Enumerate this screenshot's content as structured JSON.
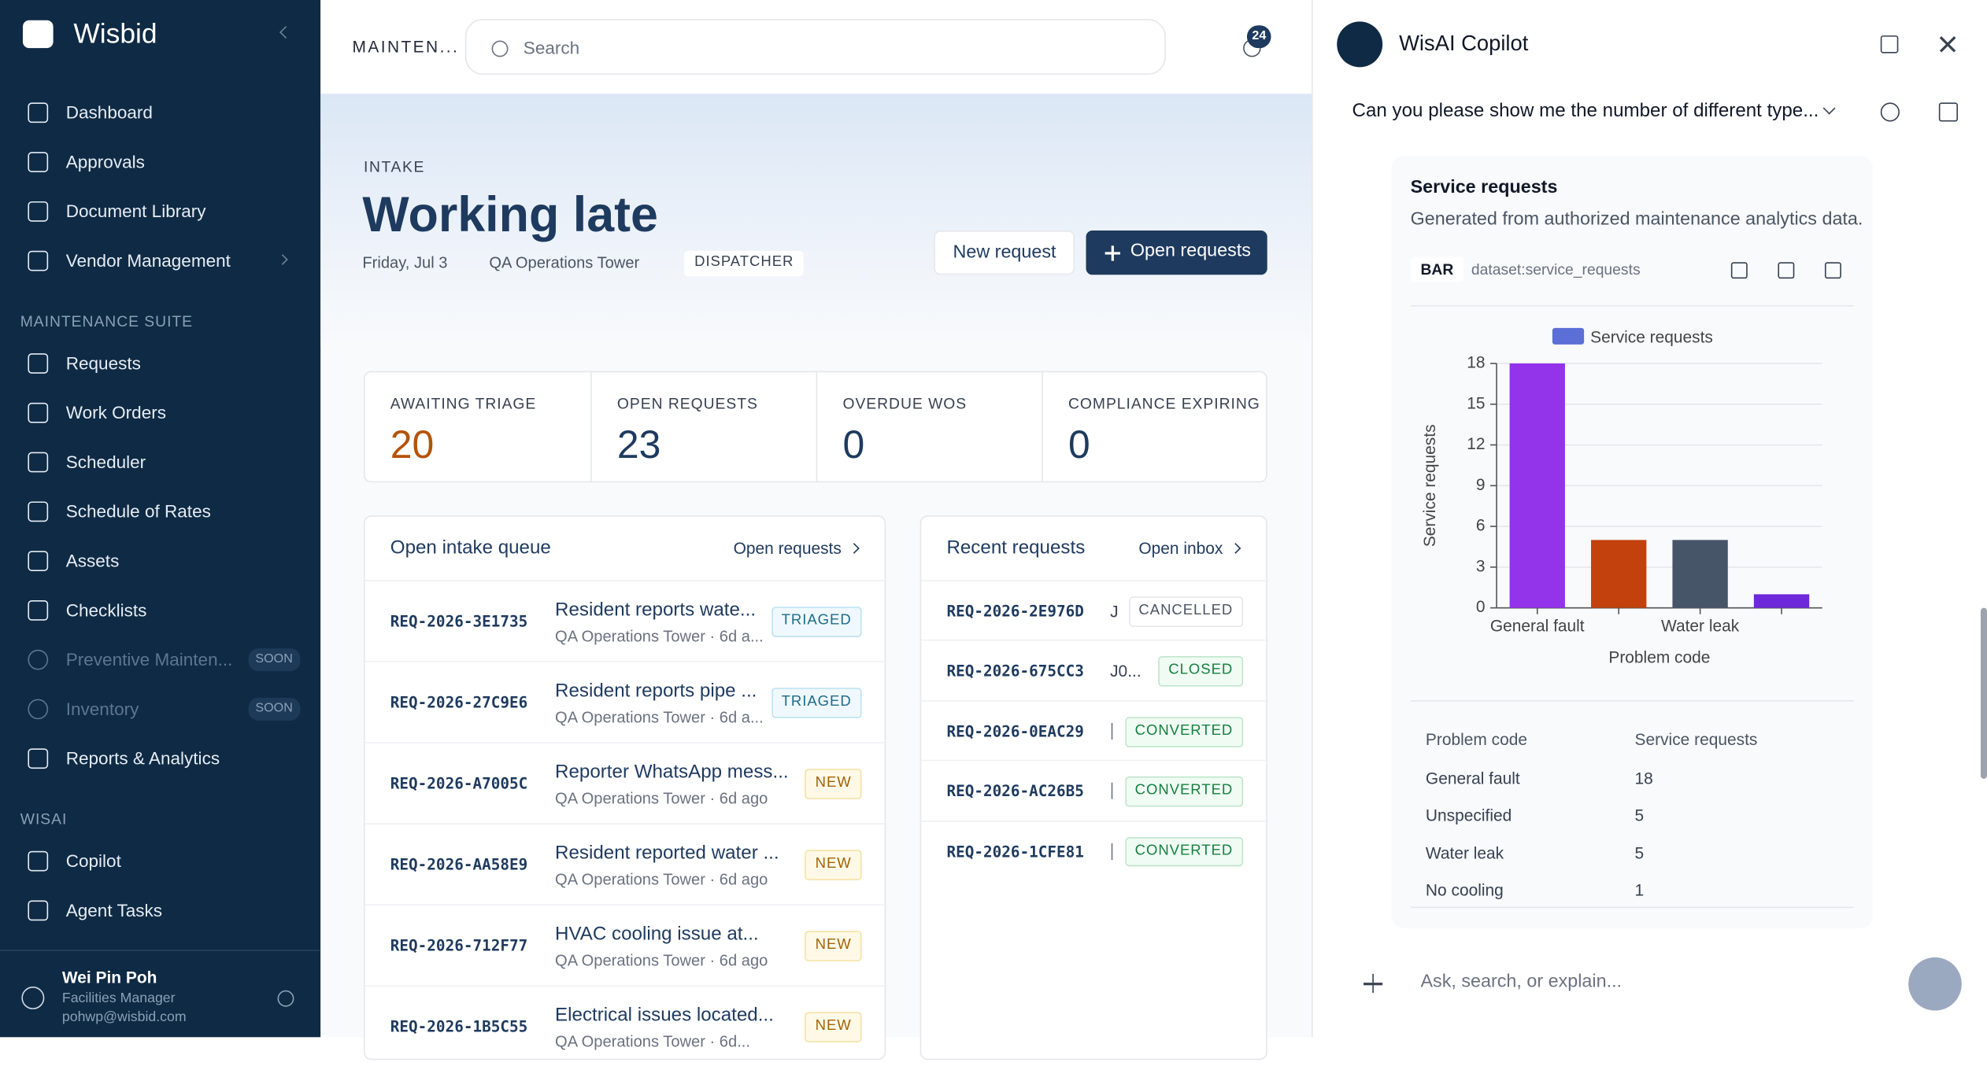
{
  "sidebar": {
    "brand": "Wisbid",
    "groups": [
      {
        "items": [
          {
            "label": "Dashboard"
          },
          {
            "label": "Approvals"
          },
          {
            "label": "Document Library"
          },
          {
            "label": "Vendor Management",
            "expandable": true
          }
        ]
      },
      {
        "heading": "MAINTENANCE SUITE",
        "items": [
          {
            "label": "Requests"
          },
          {
            "label": "Work Orders"
          },
          {
            "label": "Scheduler"
          },
          {
            "label": "Schedule of Rates"
          },
          {
            "label": "Assets"
          },
          {
            "label": "Checklists"
          },
          {
            "label": "Preventive Mainten...",
            "badge": "SOON",
            "disabled": true
          },
          {
            "label": "Inventory",
            "badge": "SOON",
            "disabled": true
          },
          {
            "label": "Reports & Analytics"
          }
        ]
      },
      {
        "heading": "WISAI",
        "items": [
          {
            "label": "Copilot"
          },
          {
            "label": "Agent Tasks"
          }
        ]
      }
    ],
    "user": {
      "name": "Wei Pin Poh",
      "role": "Facilities Manager",
      "email": "pohwp@wisbid.com"
    }
  },
  "topbar": {
    "breadcrumb": "MAINTEN...",
    "search": "Search",
    "notifications": 24
  },
  "hero": {
    "eyebrow": "INTAKE",
    "title": "Working late",
    "date": "Friday, Jul 3",
    "location": "QA Operations Tower",
    "role": "DISPATCHER",
    "actions": [
      "New request",
      "Open requests"
    ]
  },
  "stats": [
    {
      "label": "AWAITING TRIAGE",
      "value": 20,
      "color": "#b45309"
    },
    {
      "label": "OPEN REQUESTS",
      "value": 23,
      "color": "#1e3a5f"
    },
    {
      "label": "OVERDUE WOS",
      "value": 0,
      "color": "#1e3a5f"
    },
    {
      "label": "COMPLIANCE EXPIRING",
      "value": 0,
      "color": "#1e3a5f"
    }
  ],
  "queue": {
    "title": "Open intake queue",
    "link": "Open requests",
    "rows": [
      {
        "id": "REQ-2026-3E1735",
        "title": "Resident reports wate...",
        "sub": "QA Operations Tower · 6d a...",
        "status": "TRIAGED",
        "tone": "blue"
      },
      {
        "id": "REQ-2026-27C9E6",
        "title": "Resident reports pipe ...",
        "sub": "QA Operations Tower · 6d a...",
        "status": "TRIAGED",
        "tone": "blue"
      },
      {
        "id": "REQ-2026-A7005C",
        "title": "Reporter WhatsApp mess...",
        "sub": "QA Operations Tower · 6d ago",
        "status": "NEW",
        "tone": "yellow"
      },
      {
        "id": "REQ-2026-AA58E9",
        "title": "Resident reported water ...",
        "sub": "QA Operations Tower · 6d ago",
        "status": "NEW",
        "tone": "yellow"
      },
      {
        "id": "REQ-2026-712F77",
        "title": "HVAC cooling issue at...",
        "sub": "QA Operations Tower · 6d ago",
        "status": "NEW",
        "tone": "yellow"
      },
      {
        "id": "REQ-2026-1B5C55",
        "title": "Electrical issues located...",
        "sub": "QA Operations Tower · 6d...",
        "status": "NEW",
        "tone": "yellow"
      }
    ]
  },
  "recent": {
    "title": "Recent requests",
    "link": "Open inbox",
    "rows": [
      {
        "id": "REQ-2026-2E976D",
        "who": "J",
        "status": "CANCELLED",
        "tone": "gray"
      },
      {
        "id": "REQ-2026-675CC3",
        "who": "J0...",
        "status": "CLOSED",
        "tone": "green"
      },
      {
        "id": "REQ-2026-0EAC29",
        "status": "CONVERTED",
        "tone": "green"
      },
      {
        "id": "REQ-2026-AC26B5",
        "status": "CONVERTED",
        "tone": "green"
      },
      {
        "id": "REQ-2026-1CFE81",
        "status": "CONVERTED",
        "tone": "green"
      }
    ]
  },
  "copilot": {
    "title": "WisAI Copilot",
    "question": "Can you please show me the number of different type...",
    "card": {
      "title": "Service requests",
      "subtitle": "Generated from authorized maintenance analytics data.",
      "tag": "BAR",
      "dataset": "dataset:service_requests"
    },
    "table": {
      "headers": [
        "Problem code",
        "Service requests"
      ],
      "rows": [
        [
          "General fault",
          18
        ],
        [
          "Unspecified",
          5
        ],
        [
          "Water leak",
          5
        ],
        [
          "No cooling",
          1
        ]
      ]
    },
    "input": "Ask, search, or explain..."
  },
  "chart_data": {
    "type": "bar",
    "y_label": "Service requests",
    "x_label": "Problem code",
    "categories": [
      "General fault",
      null,
      "Water leak",
      null
    ],
    "series": [
      {
        "name": "Service requests",
        "color": "#5b6fd6",
        "values": [
          18,
          5,
          5,
          1
        ]
      }
    ],
    "colors": [
      "#9333ea",
      "#c2410c",
      "#475569",
      "#6d28d9"
    ],
    "ylim": [
      0,
      18
    ],
    "yticks": [
      0,
      3,
      6,
      9,
      12,
      15,
      18
    ]
  }
}
